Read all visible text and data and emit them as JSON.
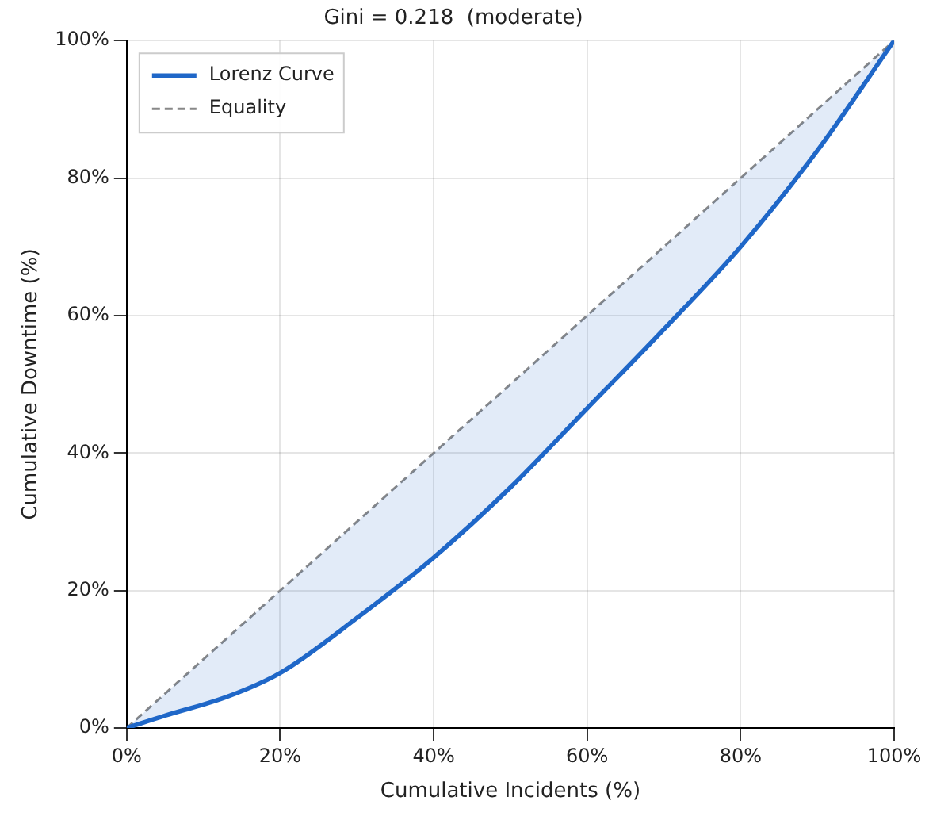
{
  "chart_data": {
    "type": "line",
    "title": "Gini = 0.218  (moderate)",
    "xlabel": "Cumulative Incidents (%)",
    "ylabel": "Cumulative Downtime (%)",
    "series": [
      {
        "name": "Lorenz Curve",
        "color": "#1f67c8",
        "x": [
          0,
          5,
          13,
          20,
          30,
          40,
          50,
          60,
          70,
          80,
          90,
          100
        ],
        "values": [
          0,
          1.8,
          4.5,
          8,
          16,
          24.8,
          35,
          46.5,
          58,
          70,
          84,
          100
        ],
        "line_style": "solid"
      },
      {
        "name": "Equality",
        "color": "#888888",
        "x": [
          0,
          100
        ],
        "values": [
          0,
          100
        ],
        "line_style": "dashed"
      }
    ],
    "xlim": [
      0,
      100
    ],
    "ylim": [
      0,
      100
    ],
    "xticks": [
      {
        "value": 0,
        "label": "0%"
      },
      {
        "value": 20,
        "label": "20%"
      },
      {
        "value": 40,
        "label": "40%"
      },
      {
        "value": 60,
        "label": "60%"
      },
      {
        "value": 80,
        "label": "80%"
      },
      {
        "value": 100,
        "label": "100%"
      }
    ],
    "yticks": [
      {
        "value": 0,
        "label": "0%"
      },
      {
        "value": 20,
        "label": "20%"
      },
      {
        "value": 40,
        "label": "40%"
      },
      {
        "value": 60,
        "label": "60%"
      },
      {
        "value": 80,
        "label": "80%"
      },
      {
        "value": 100,
        "label": "100%"
      }
    ],
    "grid": true,
    "legend": "top left",
    "marker": "none"
  }
}
